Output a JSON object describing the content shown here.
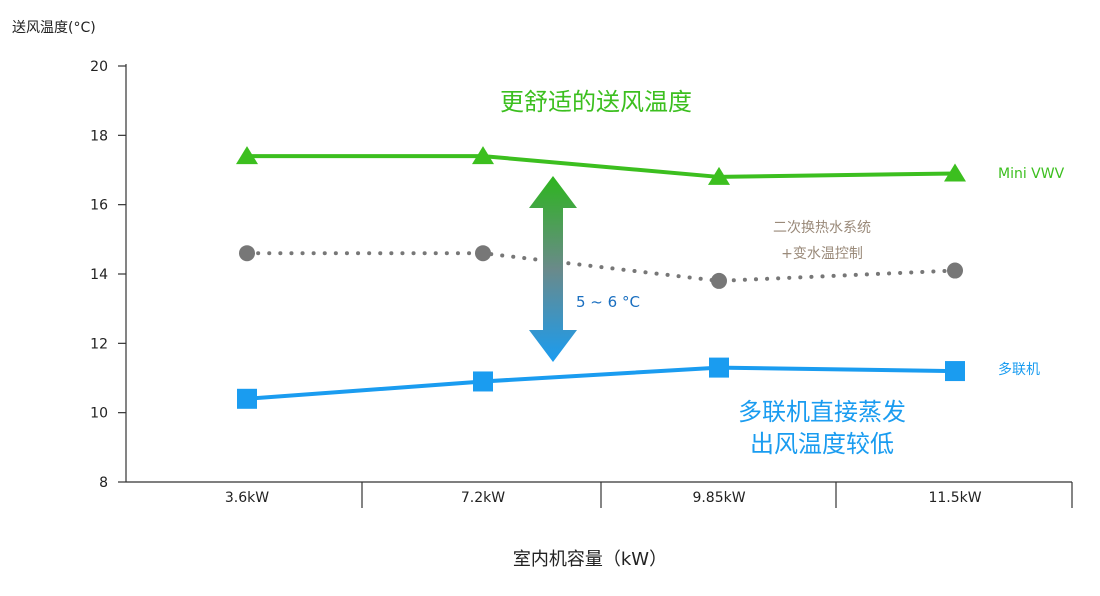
{
  "chart_data": {
    "type": "line",
    "ylabel": "送风温度(°C)",
    "xlabel": "室内机容量（kW）",
    "categories": [
      "3.6kW",
      "7.2kW",
      "9.85kW",
      "11.5kW"
    ],
    "ylim": [
      8,
      20
    ],
    "yticks": [
      8,
      10,
      12,
      14,
      16,
      18,
      20
    ],
    "grid": false,
    "series": [
      {
        "name": "Mini VWV",
        "values": [
          17.4,
          17.4,
          16.8,
          16.9
        ],
        "color": "#3cbf1f",
        "marker": "triangle",
        "style": "solid"
      },
      {
        "name": "",
        "values": [
          14.6,
          14.6,
          13.8,
          14.1
        ],
        "color": "#777777",
        "marker": "circle",
        "style": "dotted"
      },
      {
        "name": "多联机",
        "values": [
          10.4,
          10.9,
          11.3,
          11.2
        ],
        "color": "#1a9cf0",
        "marker": "square",
        "style": "solid"
      }
    ],
    "annotations": {
      "top_heading": "更舒适的送风温度",
      "gray_note_line1": "二次换热水系统",
      "gray_note_line2": "+变水温控制",
      "diff_label": "5 ~ 6 °C",
      "blue_heading_line1": "多联机直接蒸发",
      "blue_heading_line2": "出风温度较低"
    }
  },
  "colors": {
    "green": "#3cbf1f",
    "blue": "#1a9cf0",
    "gray": "#777777",
    "note_text": "#9a8a7a",
    "diff_text": "#1a6fc0"
  }
}
